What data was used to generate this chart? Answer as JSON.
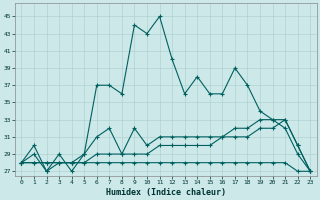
{
  "xlabel": "Humidex (Indice chaleur)",
  "xlim": [
    -0.5,
    23.5
  ],
  "ylim": [
    26.5,
    46.5
  ],
  "yticks": [
    27,
    29,
    31,
    33,
    35,
    37,
    39,
    41,
    43,
    45
  ],
  "xticks": [
    0,
    1,
    2,
    3,
    4,
    5,
    6,
    7,
    8,
    9,
    10,
    11,
    12,
    13,
    14,
    15,
    16,
    17,
    18,
    19,
    20,
    21,
    22,
    23
  ],
  "bg_color": "#cce8e8",
  "line_color": "#006060",
  "grid_color": "#aacccc",
  "lines": {
    "main": {
      "x": [
        0,
        1,
        2,
        3,
        4,
        5,
        6,
        7,
        8,
        9,
        10,
        11,
        12,
        13,
        14,
        15,
        16,
        17,
        18,
        19,
        20,
        21,
        22,
        23
      ],
      "y": [
        28,
        30,
        27,
        29,
        27,
        29,
        37,
        37,
        36,
        44,
        43,
        45,
        40,
        36,
        38,
        36,
        36,
        39,
        37,
        34,
        33,
        32,
        29,
        27
      ]
    },
    "line2": {
      "x": [
        0,
        1,
        2,
        3,
        4,
        5,
        6,
        7,
        8,
        9,
        10,
        11,
        12,
        13,
        14,
        15,
        16,
        17,
        18,
        19,
        20,
        21,
        22,
        23
      ],
      "y": [
        28,
        29,
        27,
        28,
        28,
        29,
        31,
        32,
        29,
        32,
        30,
        31,
        31,
        31,
        31,
        31,
        31,
        32,
        32,
        33,
        33,
        33,
        30,
        27
      ]
    },
    "line3": {
      "x": [
        0,
        1,
        2,
        3,
        4,
        5,
        6,
        7,
        8,
        9,
        10,
        11,
        12,
        13,
        14,
        15,
        16,
        17,
        18,
        19,
        20,
        21,
        22,
        23
      ],
      "y": [
        28,
        28,
        28,
        28,
        28,
        28,
        29,
        29,
        29,
        29,
        29,
        30,
        30,
        30,
        30,
        30,
        31,
        31,
        31,
        32,
        32,
        33,
        30,
        27
      ]
    },
    "line4": {
      "x": [
        0,
        1,
        2,
        3,
        4,
        5,
        6,
        7,
        8,
        9,
        10,
        11,
        12,
        13,
        14,
        15,
        16,
        17,
        18,
        19,
        20,
        21,
        22,
        23
      ],
      "y": [
        28,
        28,
        28,
        28,
        28,
        28,
        28,
        28,
        28,
        28,
        28,
        28,
        28,
        28,
        28,
        28,
        28,
        28,
        28,
        28,
        28,
        28,
        27,
        27
      ]
    }
  }
}
